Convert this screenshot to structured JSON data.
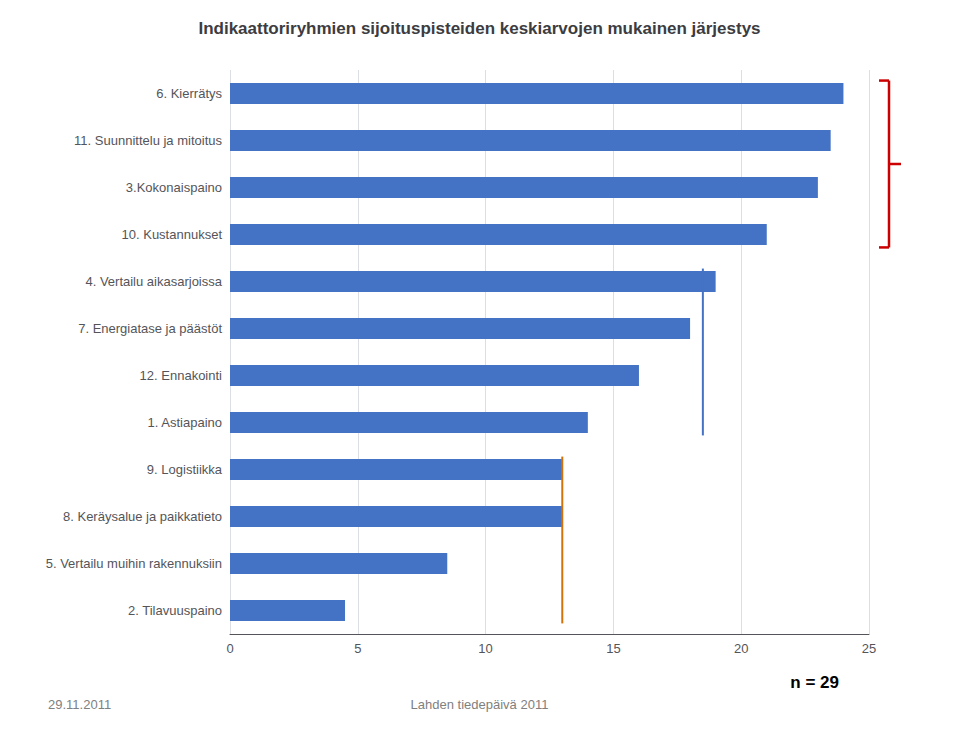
{
  "chart_data": {
    "type": "bar",
    "orientation": "horizontal",
    "title": "Indikaattoriryhmien sijoituspisteiden keskiarvojen mukainen järjestys",
    "categories": [
      "6. Kierrätys",
      "11. Suunnittelu ja mitoitus",
      "3.Kokonaispaino",
      "10. Kustannukset",
      "4. Vertailu aikasarjoissa",
      "7. Energiatase ja päästöt",
      "12. Ennakointi",
      "1. Astiapaino",
      "9. Logistiikka",
      "8. Keräysalue ja paikkatieto",
      "5. Vertailu muihin rakennuksiin",
      "2. Tilavuuspaino"
    ],
    "values": [
      24.0,
      23.5,
      23.0,
      21.0,
      19.0,
      18.0,
      16.0,
      14.0,
      13.0,
      13.0,
      8.5,
      4.5
    ],
    "color": "#4472C4",
    "xlim": [
      0,
      25
    ],
    "xticks": [
      0,
      5,
      10,
      15,
      20,
      25
    ],
    "grid": true,
    "reference_lines": [
      {
        "x": 13.0,
        "color": "#D4720A",
        "from": "9. Logistiikka",
        "to": "2. Tilavuuspaino"
      },
      {
        "x": 18.5,
        "color": "#4472C4",
        "from": "4. Vertailu aikasarjoissa",
        "to": "1. Astiapaino"
      }
    ],
    "bracket": {
      "color": "#CC0000",
      "from": "6. Kierrätys",
      "to": "10. Kustannukset"
    },
    "date_text": "29.11.2011",
    "event_text": "Lahden tiedepäivä 2011",
    "n_text": "n = 29"
  }
}
